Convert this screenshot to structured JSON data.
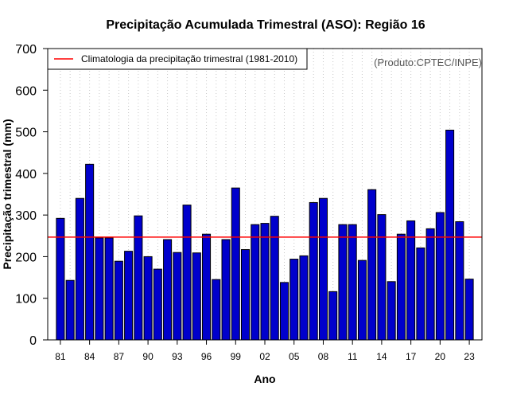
{
  "chart_data": {
    "type": "bar",
    "title": "Precipitação Acumulada Trimestral (ASO): Região 16",
    "xlabel": "Ano",
    "ylabel": "Precipitação trimestral (mm)",
    "ylim": [
      0,
      700
    ],
    "yticks": [
      0,
      100,
      200,
      300,
      400,
      500,
      600,
      700
    ],
    "x": [
      1981,
      1982,
      1983,
      1984,
      1985,
      1986,
      1987,
      1988,
      1989,
      1990,
      1991,
      1992,
      1993,
      1994,
      1995,
      1996,
      1997,
      1998,
      1999,
      2000,
      2001,
      2002,
      2003,
      2004,
      2005,
      2006,
      2007,
      2008,
      2009,
      2010,
      2011,
      2012,
      2013,
      2014,
      2015,
      2016,
      2017,
      2018,
      2019,
      2020,
      2021,
      2022,
      2023
    ],
    "values": [
      292,
      143,
      340,
      422,
      245,
      245,
      189,
      213,
      298,
      200,
      170,
      241,
      210,
      324,
      209,
      254,
      145,
      241,
      365,
      217,
      277,
      280,
      297,
      138,
      194,
      202,
      330,
      340,
      116,
      277,
      277,
      191,
      361,
      301,
      140,
      254,
      286,
      221,
      267,
      306,
      504,
      284,
      146
    ],
    "xtick_labels": [
      {
        "year": 1981,
        "label": "81"
      },
      {
        "year": 1984,
        "label": "84"
      },
      {
        "year": 1987,
        "label": "87"
      },
      {
        "year": 1990,
        "label": "90"
      },
      {
        "year": 1993,
        "label": "93"
      },
      {
        "year": 1996,
        "label": "96"
      },
      {
        "year": 1999,
        "label": "99"
      },
      {
        "year": 2002,
        "label": "02"
      },
      {
        "year": 2005,
        "label": "05"
      },
      {
        "year": 2008,
        "label": "08"
      },
      {
        "year": 2011,
        "label": "11"
      },
      {
        "year": 2014,
        "label": "14"
      },
      {
        "year": 2017,
        "label": "17"
      },
      {
        "year": 2020,
        "label": "20"
      },
      {
        "year": 2023,
        "label": "23"
      }
    ],
    "climatology": {
      "value": 247,
      "label": "Climatologia da precipitação trimestral (1981-2010)"
    },
    "legend_position": "top-left",
    "grid": "vertical-dotted",
    "bar_color": "#0000cc",
    "line_color": "#ff0000",
    "credit": "(Produto:CPTEC/INPE)"
  }
}
